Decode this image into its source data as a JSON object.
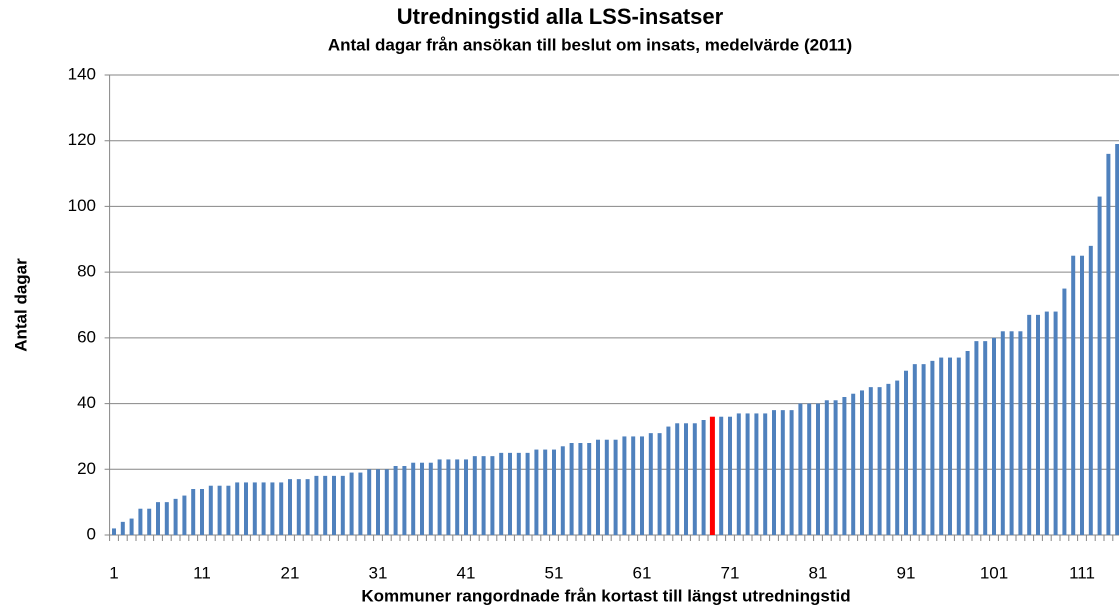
{
  "chart_data": {
    "type": "bar",
    "title": "Utredningstid alla LSS-insatser",
    "subtitle": "Antal dagar från ansökan till beslut om insats, medelvärde (2011)",
    "xlabel": "Kommuner rangordnade från kortast till längst utredningstid",
    "ylabel": "Antal dagar",
    "categories": [
      "1",
      null,
      null,
      null,
      null,
      null,
      null,
      null,
      null,
      null,
      "11",
      null,
      null,
      null,
      null,
      null,
      null,
      null,
      null,
      null,
      "21",
      null,
      null,
      null,
      null,
      null,
      null,
      null,
      null,
      null,
      "31",
      null,
      null,
      null,
      null,
      null,
      null,
      null,
      null,
      null,
      "41",
      null,
      null,
      null,
      null,
      null,
      null,
      null,
      null,
      null,
      "51",
      null,
      null,
      null,
      null,
      null,
      null,
      null,
      null,
      null,
      "61",
      null,
      null,
      null,
      null,
      null,
      null,
      null,
      null,
      null,
      "71",
      null,
      null,
      null,
      null,
      null,
      null,
      null,
      null,
      null,
      "81",
      null,
      null,
      null,
      null,
      null,
      null,
      null,
      null,
      null,
      "91",
      null,
      null,
      null,
      null,
      null,
      null,
      null,
      null,
      null,
      "101",
      null,
      null,
      null,
      null,
      null,
      null,
      null,
      null,
      null,
      "111",
      null,
      null,
      null,
      null
    ],
    "values": [
      2,
      4,
      5,
      8,
      8,
      10,
      10,
      11,
      12,
      14,
      14,
      15,
      15,
      15,
      16,
      16,
      16,
      16,
      16,
      16,
      17,
      17,
      17,
      18,
      18,
      18,
      18,
      19,
      19,
      20,
      20,
      20,
      21,
      21,
      22,
      22,
      22,
      23,
      23,
      23,
      23,
      24,
      24,
      24,
      25,
      25,
      25,
      25,
      26,
      26,
      26,
      27,
      28,
      28,
      28,
      29,
      29,
      29,
      30,
      30,
      30,
      31,
      31,
      33,
      34,
      34,
      34,
      35,
      36,
      36,
      36,
      37,
      37,
      37,
      37,
      38,
      38,
      38,
      40,
      40,
      40,
      41,
      41,
      42,
      43,
      44,
      45,
      45,
      46,
      47,
      50,
      52,
      52,
      53,
      54,
      54,
      54,
      56,
      59,
      59,
      60,
      62,
      62,
      62,
      67,
      67,
      68,
      68,
      75,
      85,
      85,
      88,
      103,
      116,
      119
    ],
    "color": "#4f81bd",
    "highlight": {
      "category_index": 68,
      "color": "#ff0000"
    },
    "ylim": [
      0,
      140
    ],
    "yticks": [
      0,
      20,
      40,
      60,
      80,
      100,
      120,
      140
    ],
    "grid": true
  }
}
